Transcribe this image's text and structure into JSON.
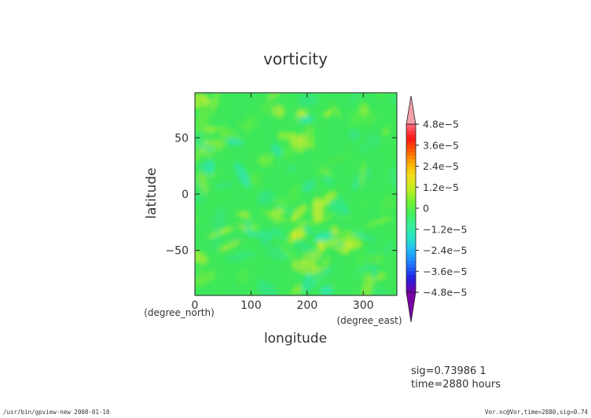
{
  "chart_data": {
    "type": "heatmap",
    "title": "vorticity",
    "xlabel": "longitude",
    "ylabel": "latitude",
    "x_unit": "(degree_east)",
    "y_unit": "(degree_north)",
    "xlim": [
      0,
      360
    ],
    "ylim": [
      -90,
      90
    ],
    "x_ticks": [
      "0",
      "100",
      "200",
      "300"
    ],
    "x_tick_values": [
      0,
      100,
      200,
      300
    ],
    "y_ticks": [
      "50",
      "0",
      "−50"
    ],
    "y_tick_values": [
      50,
      0,
      -50
    ],
    "colorbar": {
      "ticks": [
        "4.8e−5",
        "3.6e−5",
        "2.4e−5",
        "1.2e−5",
        "0",
        "−1.2e−5",
        "−2.4e−5",
        "−3.6e−5",
        "−4.8e−5"
      ],
      "tick_values": [
        4.8e-05,
        3.6e-05,
        2.4e-05,
        1.2e-05,
        0,
        -1.2e-05,
        -2.4e-05,
        -3.6e-05,
        -4.8e-05
      ],
      "range": [
        -4.8e-05,
        4.8e-05
      ],
      "top_extend_color": "#f4a0a8",
      "bottom_extend_color": "#7a00a8"
    },
    "dominant_color": "#3ee85a",
    "info_line1": "sig=0.73986 1",
    "info_line2": "time=2880 hours"
  },
  "footer": {
    "left": "/usr/bin/gpview-new  2008-01-10",
    "right": "Vor.nc@Vor,time=2880,sig=0.74"
  }
}
